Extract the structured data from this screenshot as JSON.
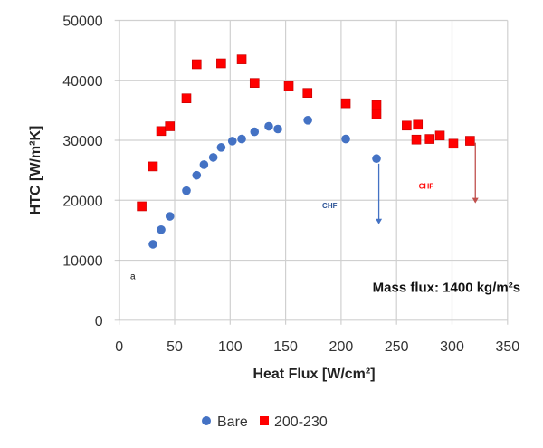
{
  "chart_data": {
    "type": "scatter",
    "xlabel": "Heat Flux [W/cm²]",
    "ylabel": "HTC [W/m²K]",
    "xlim": [
      0,
      350
    ],
    "ylim": [
      0,
      50000
    ],
    "xticks": [
      "0",
      "50",
      "100",
      "150",
      "200",
      "250",
      "300",
      "350"
    ],
    "yticks": [
      "0",
      "10000",
      "20000",
      "30000",
      "40000",
      "50000"
    ],
    "grid": true,
    "legend_position": "bottom",
    "series": [
      {
        "name": "Bare",
        "color": "#4472C4",
        "marker": "circle",
        "x": [
          30.4,
          37.8,
          45.7,
          60.6,
          69.8,
          76.4,
          84.8,
          91.9,
          102,
          110.4,
          122,
          134.8,
          143,
          170,
          204.2,
          231.9
        ],
        "y": [
          12660,
          15100,
          17320,
          21600,
          24170,
          25940,
          27150,
          28820,
          29870,
          30220,
          31430,
          32340,
          31890,
          33350,
          30220,
          26950
        ]
      },
      {
        "name": "200-230",
        "color": "#FF0000",
        "marker": "square",
        "x": [
          20.3,
          30.4,
          37.8,
          45.7,
          60.6,
          69.8,
          91.9,
          110.4,
          122,
          152.8,
          169.7,
          204.2,
          231.9,
          231.9,
          259.1,
          269.2,
          267.8,
          279.8,
          289,
          301.2,
          316.2
        ],
        "y": [
          18990,
          25640,
          31540,
          32340,
          36990,
          42680,
          42830,
          43490,
          39560,
          39050,
          37900,
          36170,
          35870,
          34360,
          32450,
          32600,
          30120,
          30220,
          30790,
          29430,
          29920
        ]
      }
    ],
    "annotations": [
      {
        "text": "CHF",
        "color": "#2E5597",
        "x": 183,
        "y": 18700
      },
      {
        "text": "CHF",
        "color": "#FF0000",
        "x": 270,
        "y": 21900
      },
      {
        "text": "Mass flux: 1400 kg/m²s",
        "x": 295,
        "y": 4700
      },
      {
        "text": "a",
        "x": 10,
        "y": 6800
      }
    ],
    "arrows": [
      {
        "color": "#4472C4",
        "x": 234,
        "y_from": 26100,
        "y_to": 16000
      },
      {
        "color": "#C0504D",
        "x": 321,
        "y_from": 29600,
        "y_to": 19500
      }
    ]
  }
}
